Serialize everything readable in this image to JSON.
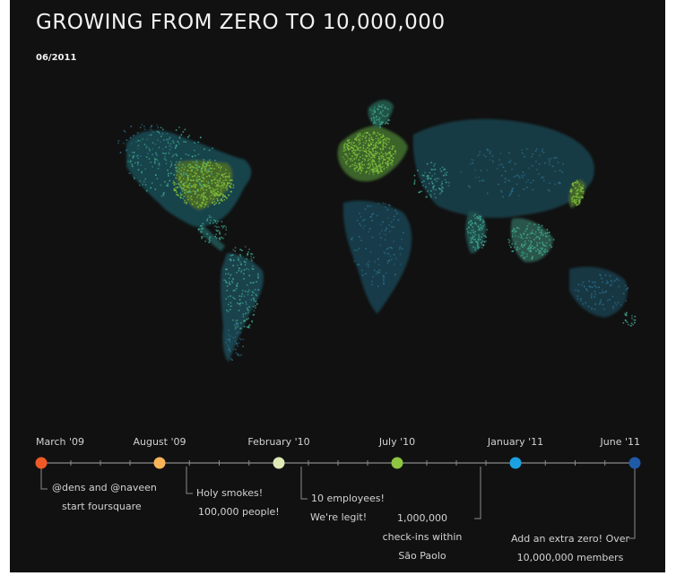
{
  "header": {
    "title": "GROWING FROM ZERO TO 10,000,000",
    "date": "06/2011"
  },
  "colors": {
    "background": "#111111",
    "dot_dense": "#7fbf3a",
    "dot_mid": "#3fa58c",
    "dot_sparse": "#2a6e8a",
    "timeline_line": "#8a8a8a"
  },
  "timeline": {
    "milestones": [
      {
        "date": "March '09",
        "color": "#f05a28",
        "text": [
          "@dens and @naveen",
          "start foursquare"
        ]
      },
      {
        "date": "August '09",
        "color": "#f9b45a",
        "text": [
          "Holy smokes!",
          "100,000 people!"
        ]
      },
      {
        "date": "February '10",
        "color": "#dfe9b5",
        "text": [
          "10 employees!",
          "We're legit!"
        ]
      },
      {
        "date": "July '10",
        "color": "#8dc63f",
        "text": [
          "1,000,000",
          "check-ins within",
          "São Paolo"
        ]
      },
      {
        "date": "January '11",
        "color": "#1ba1e2",
        "text": []
      },
      {
        "date": "June '11",
        "color": "#1f5aa6",
        "text": [
          "Add an extra zero! Over",
          "10,000,000 members"
        ]
      }
    ]
  }
}
